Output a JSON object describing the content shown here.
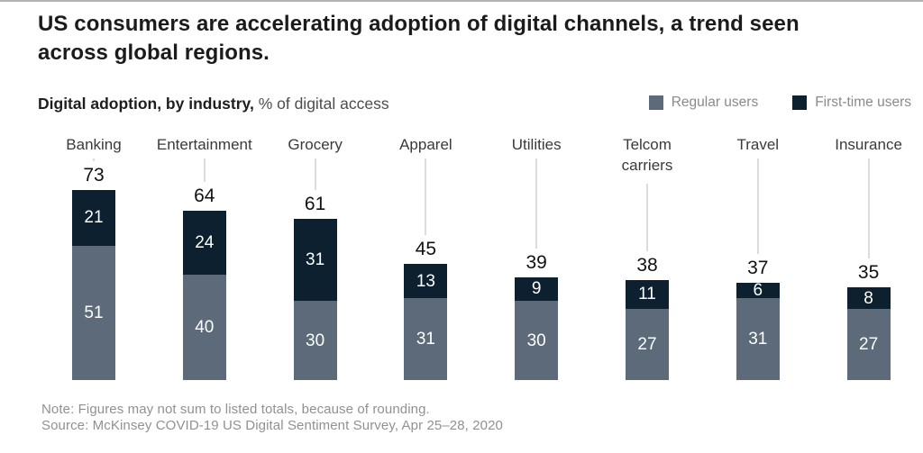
{
  "header": {
    "title": "US consumers are accelerating adoption of digital channels, a trend seen across global regions.",
    "subtitle_bold": "Digital adoption, by industry,",
    "subtitle_rest": " % of digital access"
  },
  "legend": [
    {
      "key": "regular",
      "label": "Regular users",
      "color": "#5c6a79"
    },
    {
      "key": "first_time",
      "label": "First-time users",
      "color": "#0d202f"
    }
  ],
  "chart_data": {
    "type": "bar",
    "stacked": true,
    "title": "Digital adoption, by industry, % of digital access",
    "categories": [
      "Banking",
      "Entertainment",
      "Grocery",
      "Apparel",
      "Utilities",
      "Telcom carriers",
      "Travel",
      "Insurance"
    ],
    "totals": [
      73,
      64,
      61,
      45,
      39,
      38,
      37,
      35
    ],
    "series": [
      {
        "name": "Regular users",
        "color": "#5c6a79",
        "values": [
          51,
          40,
          30,
          31,
          30,
          27,
          31,
          27
        ]
      },
      {
        "name": "First-time users",
        "color": "#0d202f",
        "values": [
          21,
          24,
          31,
          13,
          9,
          11,
          6,
          8
        ]
      }
    ],
    "ylim": [
      0,
      80
    ],
    "value_labels": true,
    "grid": false,
    "legend_position": "top-right"
  },
  "footer": {
    "note": "Note: Figures may not sum to listed totals, because of rounding.",
    "source": "Source: McKinsey COVID-19 US Digital Sentiment Survey, Apr 25–28, 2020"
  },
  "colors": {
    "regular": "#5c6a79",
    "first_time": "#0d202f",
    "connector": "#dcdcdc",
    "note_text": "#919191",
    "top_border": "#b3b3b3"
  }
}
